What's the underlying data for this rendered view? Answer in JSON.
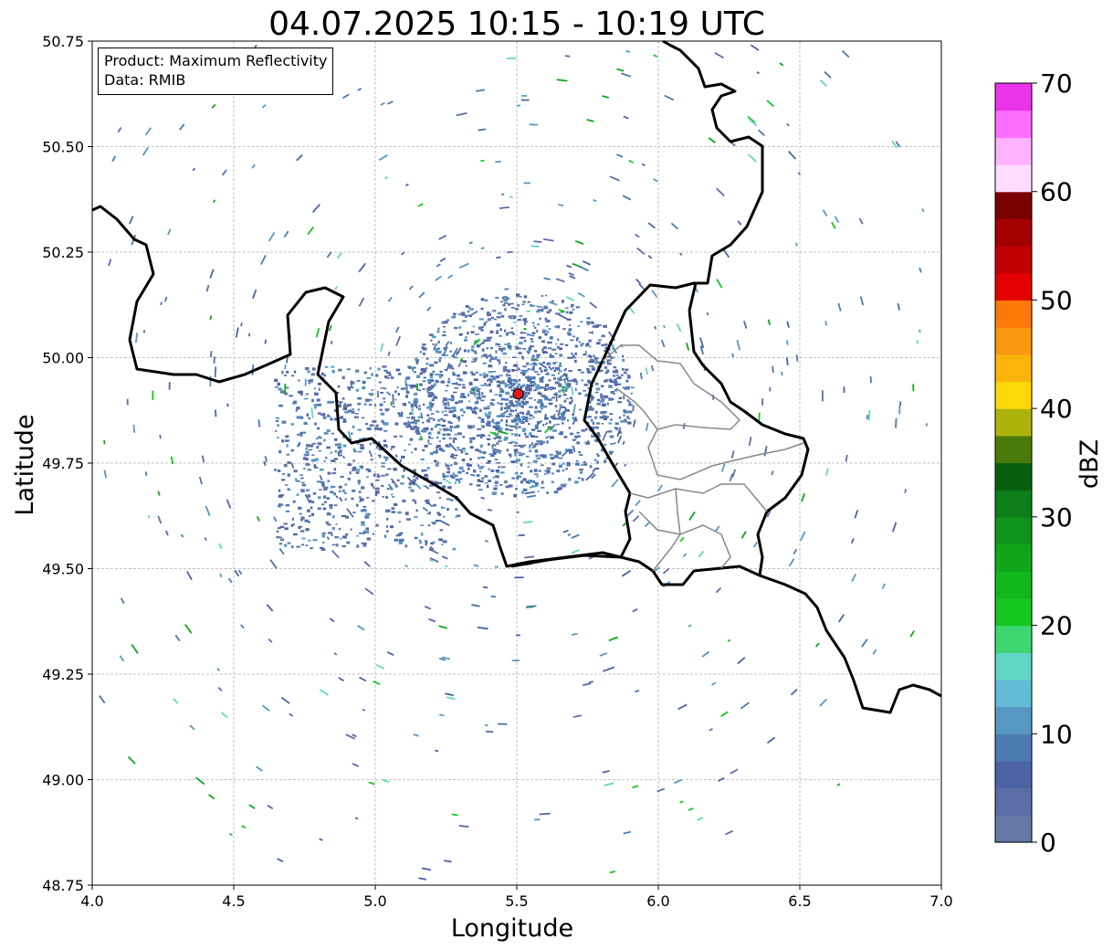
{
  "chart_data": {
    "type": "map",
    "title": "04.07.2025 10:15 - 10:19 UTC",
    "xlabel": "Longitude",
    "ylabel": "Latitude",
    "xlim": [
      4.0,
      7.0
    ],
    "ylim": [
      48.75,
      50.75
    ],
    "x_ticks": [
      "4.0",
      "4.5",
      "5.0",
      "5.5",
      "6.0",
      "6.5",
      "7.0"
    ],
    "y_ticks": [
      "48.75",
      "49.00",
      "49.25",
      "49.50",
      "49.75",
      "50.00",
      "50.25",
      "50.50",
      "50.75"
    ],
    "grid": true,
    "info": {
      "product": "Product: Maximum Reflectivity",
      "data": "Data: RMIB"
    },
    "radar_site": {
      "lon": 5.505,
      "lat": 49.914,
      "color": "#e31a1c"
    },
    "colorbar": {
      "label": "dBZ",
      "range": [
        0,
        70
      ],
      "ticks": [
        "0",
        "10",
        "20",
        "30",
        "40",
        "50",
        "60",
        "70"
      ],
      "colors": [
        "#6678a8",
        "#5b6ea6",
        "#4c64a3",
        "#4a7ab0",
        "#5698c2",
        "#62bcd8",
        "#61d6c4",
        "#3dd66f",
        "#14c71e",
        "#11b81c",
        "#10a61a",
        "#0e941a",
        "#0c7d18",
        "#075f0e",
        "#4a7a0a",
        "#adb20a",
        "#fcd808",
        "#fbb50a",
        "#fb9710",
        "#fb7a0a",
        "#e50000",
        "#c20000",
        "#a50000",
        "#7b0000",
        "#ffdcff",
        "#ffb3ff",
        "#ff6dff",
        "#ea33ea"
      ]
    }
  }
}
